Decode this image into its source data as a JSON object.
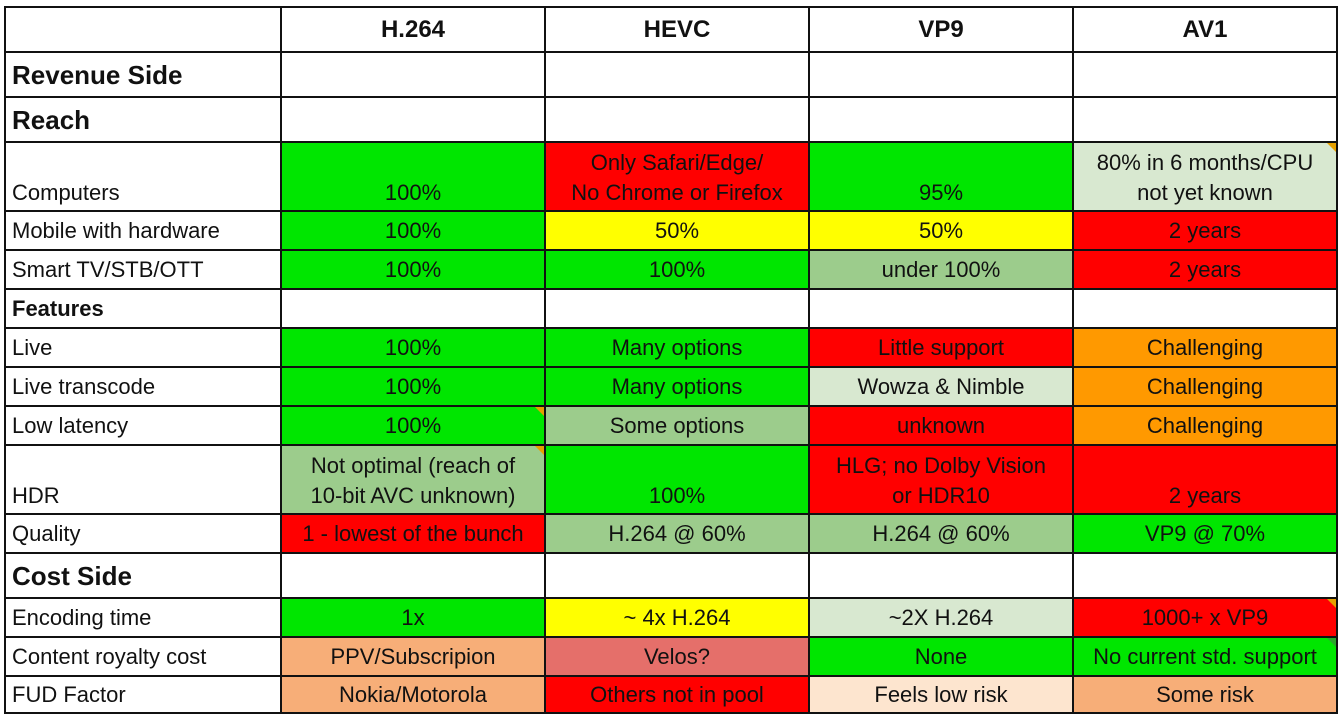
{
  "colors": {
    "green": "#00e600",
    "light_green": "#d8e8d0",
    "sage": "#9ccc8c",
    "red": "#ff0000",
    "yellow": "#ffff00",
    "orange": "#ff9900",
    "salmon": "#f7ae78",
    "rose": "#e56f6a",
    "peach": "#fde5cf",
    "white": "#ffffff",
    "comment_marker": "#e5a000"
  },
  "columns": [
    "H.264",
    "HEVC",
    "VP9",
    "AV1"
  ],
  "rows": [
    {
      "type": "section-big",
      "label": "Revenue Side",
      "cells": [
        {
          "text": "",
          "color": "white"
        },
        {
          "text": "",
          "color": "white"
        },
        {
          "text": "",
          "color": "white"
        },
        {
          "text": "",
          "color": "white"
        }
      ]
    },
    {
      "type": "section-big",
      "label": "Reach",
      "cells": [
        {
          "text": "",
          "color": "white"
        },
        {
          "text": "",
          "color": "white"
        },
        {
          "text": "",
          "color": "white"
        },
        {
          "text": "",
          "color": "white"
        }
      ]
    },
    {
      "type": "tall",
      "label": "Computers",
      "cells": [
        {
          "text": "100%",
          "color": "green"
        },
        {
          "text": "Only Safari/Edge/\nNo Chrome or Firefox",
          "color": "red"
        },
        {
          "text": "95%",
          "color": "green"
        },
        {
          "text": "80% in 6 months/CPU\nnot yet known",
          "color": "light_green",
          "marker": "orange"
        }
      ]
    },
    {
      "type": "normal",
      "label": "Mobile with hardware",
      "cells": [
        {
          "text": "100%",
          "color": "green"
        },
        {
          "text": "50%",
          "color": "yellow"
        },
        {
          "text": "50%",
          "color": "yellow"
        },
        {
          "text": "2 years",
          "color": "red"
        }
      ]
    },
    {
      "type": "normal",
      "label": "Smart TV/STB/OTT",
      "cells": [
        {
          "text": "100%",
          "color": "green"
        },
        {
          "text": "100%",
          "color": "green"
        },
        {
          "text": "under 100%",
          "color": "sage"
        },
        {
          "text": "2 years",
          "color": "red"
        }
      ]
    },
    {
      "type": "section-small",
      "label": "Features",
      "cells": [
        {
          "text": "",
          "color": "white"
        },
        {
          "text": "",
          "color": "white"
        },
        {
          "text": "",
          "color": "white"
        },
        {
          "text": "",
          "color": "white"
        }
      ]
    },
    {
      "type": "normal",
      "label": "Live",
      "cells": [
        {
          "text": "100%",
          "color": "green"
        },
        {
          "text": "Many options",
          "color": "green"
        },
        {
          "text": "Little support",
          "color": "red"
        },
        {
          "text": "Challenging",
          "color": "orange"
        }
      ]
    },
    {
      "type": "normal",
      "label": "Live transcode",
      "cells": [
        {
          "text": "100%",
          "color": "green"
        },
        {
          "text": "Many options",
          "color": "green"
        },
        {
          "text": "Wowza & Nimble",
          "color": "light_green"
        },
        {
          "text": "Challenging",
          "color": "orange"
        }
      ]
    },
    {
      "type": "normal",
      "label": "Low latency",
      "cells": [
        {
          "text": "100%",
          "color": "green",
          "marker": "orange"
        },
        {
          "text": "Some options",
          "color": "sage"
        },
        {
          "text": "unknown",
          "color": "red"
        },
        {
          "text": "Challenging",
          "color": "orange"
        }
      ]
    },
    {
      "type": "tall",
      "label": "HDR",
      "cells": [
        {
          "text": "Not optimal (reach of\n10-bit AVC unknown)",
          "color": "sage",
          "marker": "orange"
        },
        {
          "text": "100%",
          "color": "green"
        },
        {
          "text": "HLG; no Dolby Vision\nor HDR10",
          "color": "red"
        },
        {
          "text": "2 years",
          "color": "red"
        }
      ]
    },
    {
      "type": "normal",
      "label": "Quality",
      "cells": [
        {
          "text": "1 - lowest of the bunch",
          "color": "red"
        },
        {
          "text": "H.264 @ 60%",
          "color": "sage"
        },
        {
          "text": "H.264 @ 60%",
          "color": "sage"
        },
        {
          "text": "VP9 @ 70%",
          "color": "green"
        }
      ]
    },
    {
      "type": "section-big",
      "label": "Cost Side",
      "cells": [
        {
          "text": "",
          "color": "white"
        },
        {
          "text": "",
          "color": "white"
        },
        {
          "text": "",
          "color": "white"
        },
        {
          "text": "",
          "color": "white"
        }
      ]
    },
    {
      "type": "normal",
      "label": "Encoding time",
      "cells": [
        {
          "text": "1x",
          "color": "green"
        },
        {
          "text": "~ 4x H.264",
          "color": "yellow"
        },
        {
          "text": "~2X H.264",
          "color": "light_green"
        },
        {
          "text": "1000+ x VP9",
          "color": "red",
          "marker": "orange"
        }
      ]
    },
    {
      "type": "normal",
      "label": "Content royalty cost",
      "cells": [
        {
          "text": "PPV/Subscripion",
          "color": "salmon"
        },
        {
          "text": "Velos?",
          "color": "rose"
        },
        {
          "text": "None",
          "color": "green"
        },
        {
          "text": "No current std. support",
          "color": "green",
          "marker": "green"
        }
      ]
    },
    {
      "type": "short",
      "label": "FUD Factor",
      "cells": [
        {
          "text": "Nokia/Motorola",
          "color": "salmon"
        },
        {
          "text": "Others not in pool",
          "color": "red"
        },
        {
          "text": "Feels low risk",
          "color": "peach"
        },
        {
          "text": "Some risk",
          "color": "salmon"
        }
      ]
    }
  ]
}
